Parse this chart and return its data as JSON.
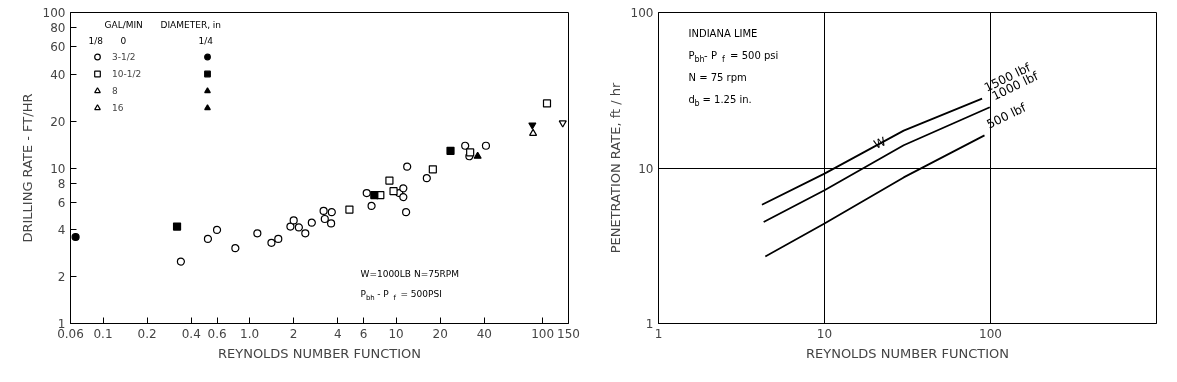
{
  "chart_data": [
    {
      "type": "scatter",
      "xlabel": "REYNOLDS NUMBER FUNCTION",
      "ylabel": "DRILLING RATE - FT/HR",
      "log": "xy",
      "xlim": [
        0.06,
        150
      ],
      "ylim": [
        1,
        100
      ],
      "xticks": [
        0.06,
        0.1,
        0.2,
        0.4,
        0.6,
        {
          "value": 1,
          "label": "1.0"
        },
        2,
        4,
        6,
        10,
        20,
        40,
        100,
        150
      ],
      "yticks": [
        1,
        2,
        4,
        6,
        8,
        10,
        20,
        40,
        60,
        80,
        100
      ],
      "grid": false,
      "legend": "top left",
      "annotations": [
        "GAL/MIN",
        "DIAMETER, in",
        "1/8",
        "1/4",
        "0",
        "W=1000LB   N=75RPM",
        "P$_{bh}$ - P$_{f}$ = 500PSI"
      ],
      "series": [
        {
          "name": "3-1/2",
          "marker": "circle",
          "color": "#000000",
          "x": [
            0.34,
            0.52,
            0.6,
            0.8,
            1.13,
            1.41,
            1.57,
            1.9,
            2.0,
            2.17,
            2.4,
            2.66,
            3.2,
            3.26,
            3.64,
            3.6,
            6.3,
            6.8,
            10.5,
            11.2,
            11.2,
            11.7,
            11.9,
            16.2,
            29.6,
            31.6,
            41
          ],
          "values": [
            2.5,
            3.5,
            4.0,
            3.05,
            3.8,
            3.3,
            3.5,
            4.2,
            4.6,
            4.15,
            3.8,
            4.45,
            5.3,
            4.7,
            5.2,
            4.4,
            6.9,
            5.7,
            6.9,
            7.4,
            6.5,
            5.2,
            10.2,
            8.6,
            13.9,
            11.9,
            13.9
          ]
        },
        {
          "marker": "circle",
          "color": "#000000",
          "x": [
            0.065
          ],
          "values": [
            3.6
          ]
        },
        {
          "name": "10-1/2",
          "marker": "square",
          "color": "#000000",
          "x": [
            4.8,
            7.8,
            9.0,
            9.6,
            17.8,
            32,
            107
          ],
          "values": [
            5.4,
            6.7,
            8.3,
            7.1,
            9.8,
            12.6,
            26
          ]
        },
        {
          "marker": "square",
          "color": "#000000",
          "x": [
            0.32,
            7.1,
            23.5
          ],
          "values": [
            4.2,
            6.7,
            12.9
          ]
        },
        {
          "name": "8",
          "marker": "triangle",
          "color": "#000000",
          "x": [
            86
          ],
          "values": [
            16.7
          ]
        },
        {
          "marker": "triangle",
          "color": "#000000",
          "x": [
            36
          ],
          "values": [
            11.9
          ]
        },
        {
          "name": "16",
          "marker": "triangle",
          "color": "#000000",
          "x": [
            137
          ],
          "values": [
            19.5
          ]
        },
        {
          "marker": "triangle",
          "color": "#000000",
          "x": [
            85
          ],
          "values": [
            18.9
          ]
        }
      ]
    },
    {
      "type": "line",
      "xlabel": "REYNOLDS NUMBER FUNCTION",
      "ylabel": "PENETRATION RATE, ft / hr",
      "log": "xy",
      "xlim": [
        1,
        1000
      ],
      "ylim": [
        1,
        100
      ],
      "xticks": [
        1,
        10,
        100
      ],
      "yticks": [
        1,
        10,
        100
      ],
      "grid": true,
      "annotations": [
        "INDIANA LIME",
        "P$_{bh}$- P$_{f}$ = 500 psi",
        "N = 75 rpm",
        "d$_{b}$ = 1.25 in.",
        {
          "text": "W",
          "x": 20,
          "y": 14
        }
      ],
      "series": [
        {
          "name": "1500 lbf",
          "color": "#000000",
          "x": [
            4.2,
            10,
            30,
            89
          ],
          "values": [
            5.8,
            9.2,
            17.4,
            27.9
          ]
        },
        {
          "name": "1000 lbf",
          "color": "#000000",
          "x": [
            4.3,
            10,
            30,
            99
          ],
          "values": [
            4.5,
            7.2,
            14.0,
            24.6
          ]
        },
        {
          "name": "500 lbf",
          "color": "#000000",
          "x": [
            4.4,
            10,
            30,
            92
          ],
          "values": [
            2.7,
            4.4,
            8.7,
            16.2
          ]
        }
      ]
    }
  ]
}
